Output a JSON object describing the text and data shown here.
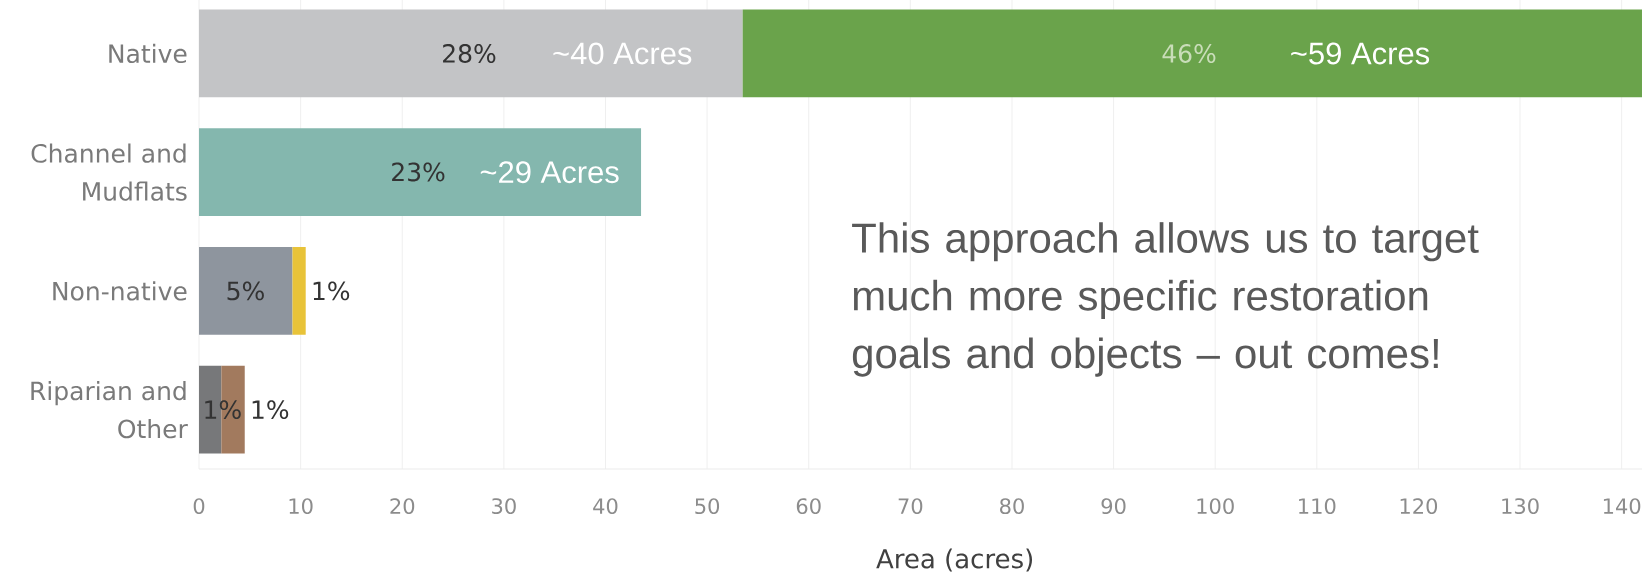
{
  "chart_data": {
    "type": "bar",
    "orientation": "horizontal",
    "stacked": true,
    "categories": [
      "Native",
      "Channel and Mudflats",
      "Non-native",
      "Riparian and Other"
    ],
    "series": [
      {
        "colors": [
          "#c3c4c6",
          "#84b7ae",
          "#8e959e",
          "#77787a"
        ],
        "values": [
          53.5,
          43.5,
          9.2,
          2.2
        ]
      },
      {
        "colors": [
          "#6aa34b",
          null,
          "#e8c339",
          "#a27a5e"
        ],
        "values": [
          88.5,
          null,
          1.3,
          2.3
        ]
      }
    ],
    "xlim": [
      0,
      142
    ],
    "xticks": [
      0,
      10,
      20,
      30,
      40,
      50,
      60,
      70,
      80,
      90,
      100,
      110,
      120,
      130,
      140
    ],
    "xlabel": "Area (acres)",
    "grid": "x",
    "annotations": [
      {
        "text": "~40 Acres",
        "x": 53.5,
        "y": "Native"
      },
      {
        "text": "~29 Acres",
        "x": 43.5,
        "y": "Channel and Mudflats"
      },
      {
        "text": "5%",
        "x": 9.2,
        "y": "Non-native"
      },
      {
        "text": "1%",
        "x": 10.5,
        "y": "Non-native"
      },
      {
        "text": "1%",
        "x": 2.2,
        "y": "Riparian and Other"
      },
      {
        "text": "1%",
        "x": 4.5,
        "y": "Riparian and Other"
      },
      "28%",
      "46%",
      "~59 Acres",
      "23%",
      "This approach allows us to target much more specific restoration goals and objects – out comes!"
    ]
  }
}
